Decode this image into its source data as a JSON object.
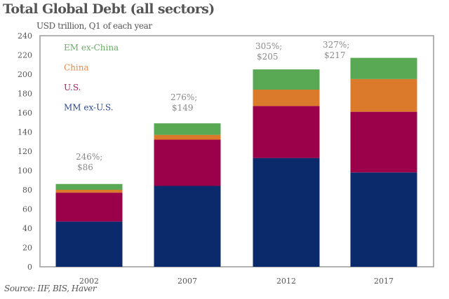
{
  "chart_data": {
    "type": "bar",
    "stacked": true,
    "title": "Total Global Debt (all sectors)",
    "subtitle": "USD trillion, Q1 of each year",
    "xlabel": "",
    "ylabel": "USD trillion",
    "ylim": [
      0,
      240
    ],
    "yticks": [
      0,
      20,
      40,
      60,
      80,
      100,
      120,
      140,
      160,
      180,
      200,
      220,
      240
    ],
    "grid": false,
    "legend_position": "top-left",
    "categories": [
      "2002",
      "2007",
      "2012",
      "2017"
    ],
    "series": [
      {
        "name": "MM ex-U.S.",
        "color": "#0b2a6b",
        "label_color": "#2c4a8a",
        "values": [
          47,
          84,
          113,
          98
        ]
      },
      {
        "name": "U.S.",
        "color": "#9b004a",
        "label_color": "#a4235e",
        "values": [
          30,
          48,
          54,
          63
        ]
      },
      {
        "name": "China",
        "color": "#dc7a2c",
        "label_color": "#e08a4e",
        "values": [
          3,
          5,
          17,
          34
        ]
      },
      {
        "name": "EM ex-China",
        "color": "#58a854",
        "label_color": "#6aad69",
        "values": [
          6,
          12,
          21,
          22
        ]
      }
    ],
    "totals": [
      86,
      149,
      205,
      217
    ],
    "annotations": [
      {
        "category": "2002",
        "line1": "246%;",
        "line2": "$86"
      },
      {
        "category": "2007",
        "line1": "276%;",
        "line2": "$149"
      },
      {
        "category": "2012",
        "line1": "305%;",
        "line2": "$205"
      },
      {
        "category": "2017",
        "line1": "327%;",
        "line2": "$217"
      }
    ],
    "legend_order": [
      "EM ex-China",
      "China",
      "U.S.",
      "MM ex-U.S."
    ],
    "source": "Source: IIF, BIS, Haver"
  }
}
